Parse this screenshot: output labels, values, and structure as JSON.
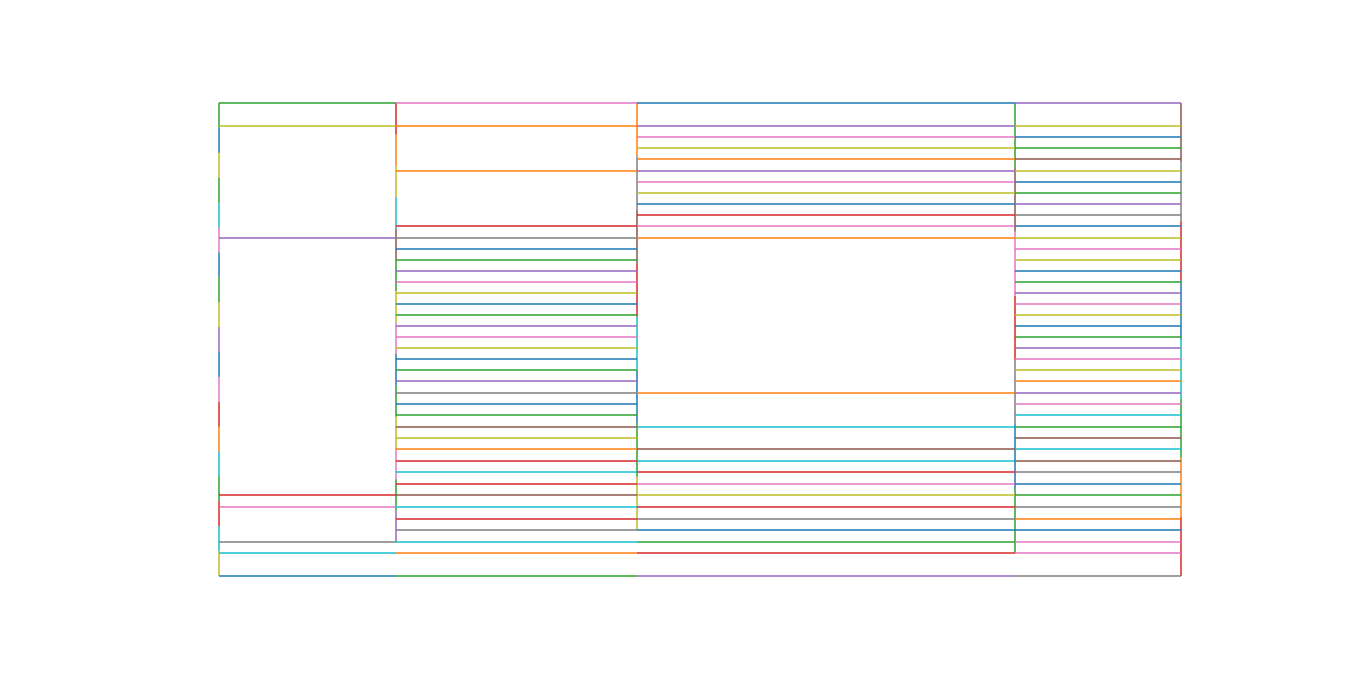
{
  "chart_data": {
    "type": "line",
    "title": "",
    "xlabel": "",
    "ylabel": "",
    "axes_visible": false,
    "grid": false,
    "xlim": [
      0,
      962
    ],
    "ylim": [
      0,
      473
    ],
    "palette": {
      "b": "#1f77b4",
      "o": "#ff7f0e",
      "g": "#2ca02c",
      "r": "#d62728",
      "p": "#9467bd",
      "n": "#8c564b",
      "k": "#e377c2",
      "a": "#7f7f7f",
      "y": "#bcbd22",
      "c": "#17becf"
    },
    "columns": [
      {
        "x": [
          0,
          177
        ],
        "lines": [
          [
            473,
            "g"
          ],
          [
            450,
            "y"
          ],
          [
            338,
            "p"
          ],
          [
            81,
            "r"
          ],
          [
            69,
            "k"
          ],
          [
            34,
            "a"
          ],
          [
            23,
            "c"
          ],
          [
            0,
            "b"
          ]
        ]
      },
      {
        "x": [
          177,
          418
        ],
        "lines": [
          [
            473,
            "k"
          ],
          [
            450,
            "o"
          ],
          [
            405,
            "o"
          ],
          [
            350,
            "r"
          ],
          [
            338,
            "a"
          ],
          [
            327,
            "b"
          ],
          [
            316,
            "g"
          ],
          [
            305,
            "p"
          ],
          [
            294,
            "k"
          ],
          [
            283,
            "y"
          ],
          [
            272,
            "b"
          ],
          [
            261,
            "g"
          ],
          [
            250,
            "p"
          ],
          [
            239,
            "k"
          ],
          [
            228,
            "y"
          ],
          [
            217,
            "b"
          ],
          [
            206,
            "g"
          ],
          [
            195,
            "p"
          ],
          [
            183,
            "a"
          ],
          [
            172,
            "b"
          ],
          [
            161,
            "g"
          ],
          [
            149,
            "n"
          ],
          [
            138,
            "y"
          ],
          [
            127,
            "o"
          ],
          [
            115,
            "r"
          ],
          [
            104,
            "c"
          ],
          [
            92,
            "r"
          ],
          [
            81,
            "n"
          ],
          [
            69,
            "c"
          ],
          [
            57,
            "r"
          ],
          [
            46,
            "a"
          ],
          [
            34,
            "c"
          ],
          [
            23,
            "o"
          ],
          [
            0,
            "g"
          ]
        ]
      },
      {
        "x": [
          418,
          796
        ],
        "lines": [
          [
            473,
            "b"
          ],
          [
            450,
            "p"
          ],
          [
            439,
            "k"
          ],
          [
            428,
            "y"
          ],
          [
            417,
            "o"
          ],
          [
            405,
            "p"
          ],
          [
            394,
            "k"
          ],
          [
            383,
            "y"
          ],
          [
            372,
            "b"
          ],
          [
            361,
            "r"
          ],
          [
            350,
            "k"
          ],
          [
            338,
            "o"
          ],
          [
            183,
            "o"
          ],
          [
            149,
            "c"
          ],
          [
            127,
            "n"
          ],
          [
            115,
            "c"
          ],
          [
            104,
            "r"
          ],
          [
            92,
            "k"
          ],
          [
            81,
            "y"
          ],
          [
            69,
            "r"
          ],
          [
            57,
            "a"
          ],
          [
            46,
            "b"
          ],
          [
            34,
            "g"
          ],
          [
            23,
            "r"
          ],
          [
            0,
            "p"
          ]
        ]
      },
      {
        "x": [
          796,
          962
        ],
        "lines": [
          [
            473,
            "p"
          ],
          [
            450,
            "y"
          ],
          [
            439,
            "b"
          ],
          [
            428,
            "g"
          ],
          [
            417,
            "n"
          ],
          [
            405,
            "y"
          ],
          [
            394,
            "b"
          ],
          [
            383,
            "g"
          ],
          [
            372,
            "p"
          ],
          [
            361,
            "a"
          ],
          [
            350,
            "b"
          ],
          [
            338,
            "y"
          ],
          [
            327,
            "k"
          ],
          [
            316,
            "y"
          ],
          [
            305,
            "b"
          ],
          [
            294,
            "g"
          ],
          [
            283,
            "p"
          ],
          [
            272,
            "k"
          ],
          [
            261,
            "y"
          ],
          [
            250,
            "b"
          ],
          [
            239,
            "g"
          ],
          [
            228,
            "p"
          ],
          [
            217,
            "k"
          ],
          [
            206,
            "y"
          ],
          [
            195,
            "o"
          ],
          [
            183,
            "p"
          ],
          [
            172,
            "k"
          ],
          [
            161,
            "c"
          ],
          [
            149,
            "g"
          ],
          [
            138,
            "n"
          ],
          [
            127,
            "c"
          ],
          [
            115,
            "n"
          ],
          [
            104,
            "a"
          ],
          [
            92,
            "b"
          ],
          [
            81,
            "g"
          ],
          [
            69,
            "a"
          ],
          [
            57,
            "o"
          ],
          [
            46,
            "b"
          ],
          [
            34,
            "k"
          ],
          [
            23,
            "k"
          ],
          [
            0,
            "a"
          ]
        ]
      }
    ],
    "verticals": [
      {
        "x": 0,
        "y": [
          0,
          473
        ],
        "colors": [
          "y",
          "c",
          "r",
          "g",
          "c",
          "o",
          "r",
          "k",
          "b",
          "p",
          "y",
          "g",
          "b",
          "k",
          "c",
          "g",
          "y",
          "b",
          "g"
        ]
      },
      {
        "x": 177,
        "y": [
          34,
          473
        ],
        "colors": [
          "p",
          "g",
          "k",
          "y",
          "g",
          "b",
          "k",
          "y",
          "g",
          "n",
          "c",
          "y",
          "o",
          "r"
        ]
      },
      {
        "x": 418,
        "y": [
          46,
          473
        ],
        "colors": [
          "y",
          "g",
          "b",
          "c",
          "r",
          "n",
          "a",
          "o"
        ]
      },
      {
        "x": 796,
        "y": [
          23,
          473
        ],
        "colors": [
          "g",
          "b",
          "a",
          "r",
          "k",
          "n",
          "g"
        ]
      },
      {
        "x": 962,
        "y": [
          0,
          473
        ],
        "colors": [
          "r",
          "o",
          "g",
          "c",
          "b",
          "r",
          "a",
          "n"
        ]
      }
    ]
  }
}
